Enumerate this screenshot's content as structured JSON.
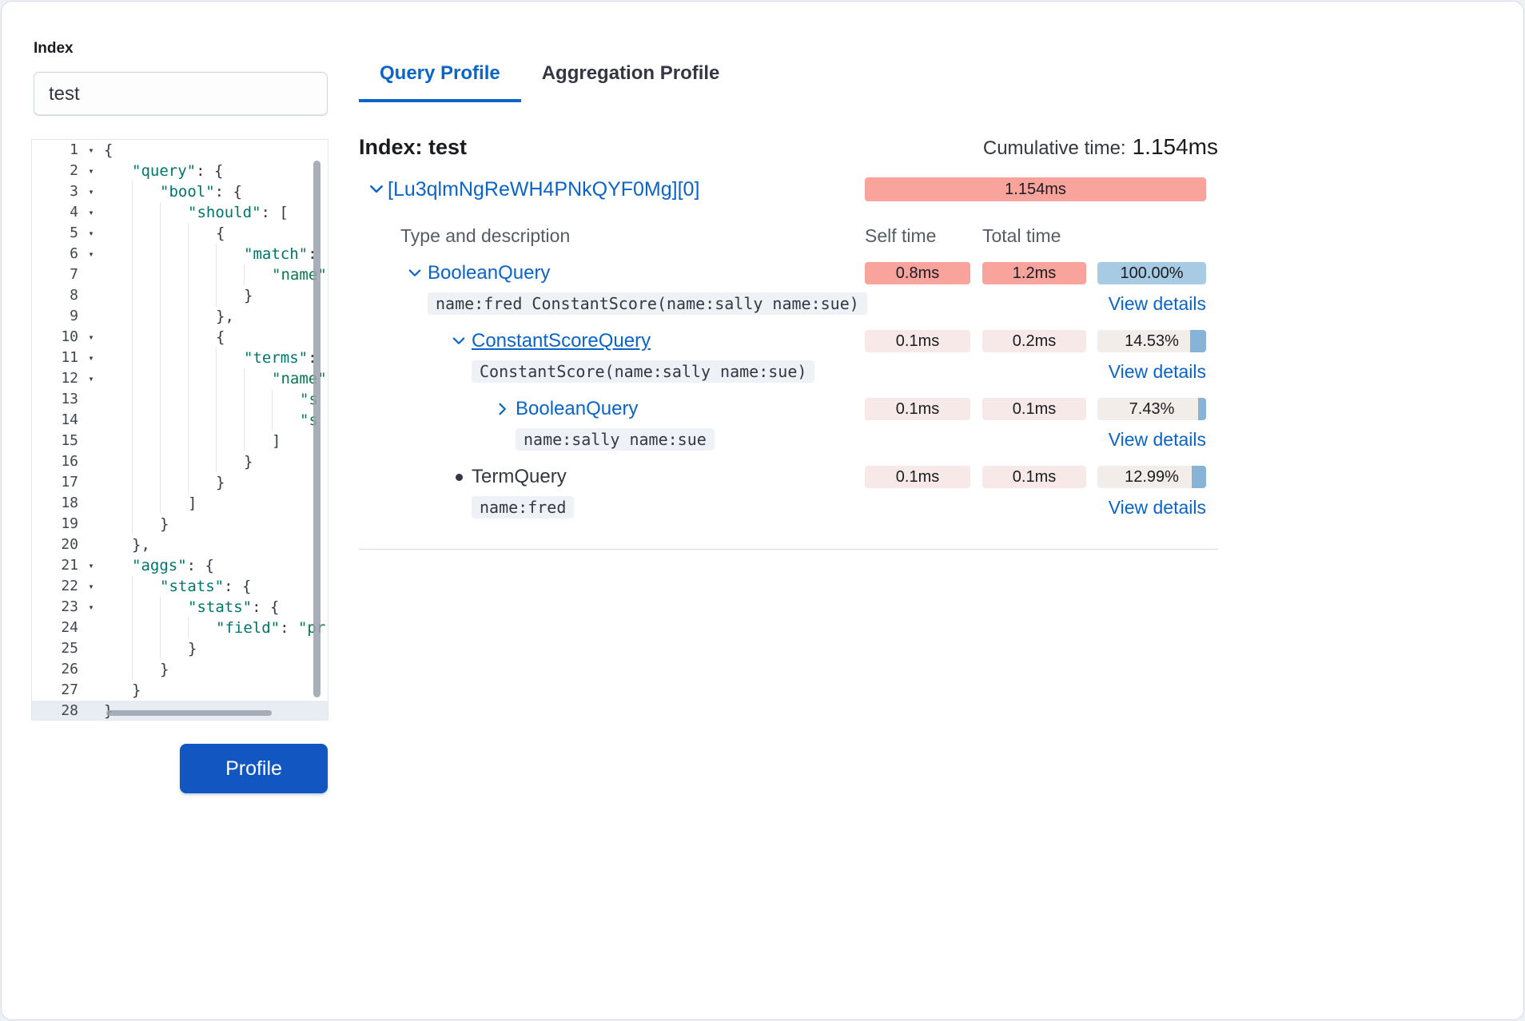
{
  "colors": {
    "accent_blue": "#0b64c7",
    "profile_button": "#1256c2",
    "badge_time_high": "#f8a49d",
    "badge_time_low": "#f6e9e7",
    "badge_pct_bg": "#f2ede9",
    "badge_pct_full": "#a6cbe3",
    "badge_pct_bar": "#87b4d6",
    "code_chip_bg": "#eef1f6"
  },
  "left": {
    "index_label": "Index",
    "index_value": "test",
    "profile_button_label": "Profile",
    "editor": {
      "lines": [
        {
          "n": 1,
          "fold": true,
          "indent": 0,
          "text": "{"
        },
        {
          "n": 2,
          "fold": true,
          "indent": 1,
          "text": "\"query\": {"
        },
        {
          "n": 3,
          "fold": true,
          "indent": 2,
          "text": "\"bool\": {"
        },
        {
          "n": 4,
          "fold": true,
          "indent": 3,
          "text": "\"should\": ["
        },
        {
          "n": 5,
          "fold": true,
          "indent": 4,
          "text": "{"
        },
        {
          "n": 6,
          "fold": true,
          "indent": 5,
          "text": "\"match\":"
        },
        {
          "n": 7,
          "fold": false,
          "indent": 6,
          "text": "\"name\""
        },
        {
          "n": 8,
          "fold": false,
          "indent": 5,
          "text": "}"
        },
        {
          "n": 9,
          "fold": false,
          "indent": 4,
          "text": "},"
        },
        {
          "n": 10,
          "fold": true,
          "indent": 4,
          "text": "{"
        },
        {
          "n": 11,
          "fold": true,
          "indent": 5,
          "text": "\"terms\":"
        },
        {
          "n": 12,
          "fold": true,
          "indent": 6,
          "text": "\"name\""
        },
        {
          "n": 13,
          "fold": false,
          "indent": 7,
          "text": "\"s"
        },
        {
          "n": 14,
          "fold": false,
          "indent": 7,
          "text": "\"s"
        },
        {
          "n": 15,
          "fold": false,
          "indent": 6,
          "text": "]"
        },
        {
          "n": 16,
          "fold": false,
          "indent": 5,
          "text": "}"
        },
        {
          "n": 17,
          "fold": false,
          "indent": 4,
          "text": "}"
        },
        {
          "n": 18,
          "fold": false,
          "indent": 3,
          "text": "]"
        },
        {
          "n": 19,
          "fold": false,
          "indent": 2,
          "text": "}"
        },
        {
          "n": 20,
          "fold": false,
          "indent": 1,
          "text": "},"
        },
        {
          "n": 21,
          "fold": true,
          "indent": 1,
          "text": "\"aggs\": {"
        },
        {
          "n": 22,
          "fold": true,
          "indent": 2,
          "text": "\"stats\": {"
        },
        {
          "n": 23,
          "fold": true,
          "indent": 3,
          "text": "\"stats\": {"
        },
        {
          "n": 24,
          "fold": false,
          "indent": 4,
          "text": "\"field\": \"pr"
        },
        {
          "n": 25,
          "fold": false,
          "indent": 3,
          "text": "}"
        },
        {
          "n": 26,
          "fold": false,
          "indent": 2,
          "text": "}"
        },
        {
          "n": 27,
          "fold": false,
          "indent": 1,
          "text": "}"
        },
        {
          "n": 28,
          "fold": false,
          "indent": 0,
          "text": "}",
          "active": true
        }
      ]
    }
  },
  "tabs": [
    {
      "label": "Query Profile",
      "active": true
    },
    {
      "label": "Aggregation Profile",
      "active": false
    }
  ],
  "profile": {
    "index_heading": "Index: test",
    "cumulative_label": "Cumulative time:",
    "cumulative_value": "1.154ms",
    "shard_id": "[Lu3qlmNgReWH4PNkQYF0Mg][0]",
    "shard_time": "1.154ms",
    "headers": [
      "Type and description",
      "Self time",
      "Total time"
    ],
    "rows": [
      {
        "indent": 0,
        "expander": "open",
        "name": "BooleanQuery",
        "link": true,
        "underline": false,
        "desc": "name:fred ConstantScore(name:sally name:sue)",
        "self_time": "0.8ms",
        "self_heat": "high",
        "total_time": "1.2ms",
        "total_heat": "high",
        "pct": "100.00%",
        "pct_value": 100,
        "details_label": "View details"
      },
      {
        "indent": 1,
        "expander": "open",
        "name": "ConstantScoreQuery",
        "link": true,
        "underline": true,
        "desc": "ConstantScore(name:sally name:sue)",
        "self_time": "0.1ms",
        "self_heat": "low",
        "total_time": "0.2ms",
        "total_heat": "low",
        "pct": "14.53%",
        "pct_value": 14.53,
        "details_label": "View details"
      },
      {
        "indent": 2,
        "expander": "closed",
        "name": "BooleanQuery",
        "link": true,
        "underline": false,
        "desc": "name:sally name:sue",
        "self_time": "0.1ms",
        "self_heat": "low",
        "total_time": "0.1ms",
        "total_heat": "low",
        "pct": "7.43%",
        "pct_value": 7.43,
        "details_label": "View details"
      },
      {
        "indent": 1,
        "expander": "bullet",
        "name": "TermQuery",
        "link": false,
        "underline": false,
        "desc": "name:fred",
        "self_time": "0.1ms",
        "self_heat": "low",
        "total_time": "0.1ms",
        "total_heat": "low",
        "pct": "12.99%",
        "pct_value": 12.99,
        "details_label": "View details"
      }
    ]
  }
}
